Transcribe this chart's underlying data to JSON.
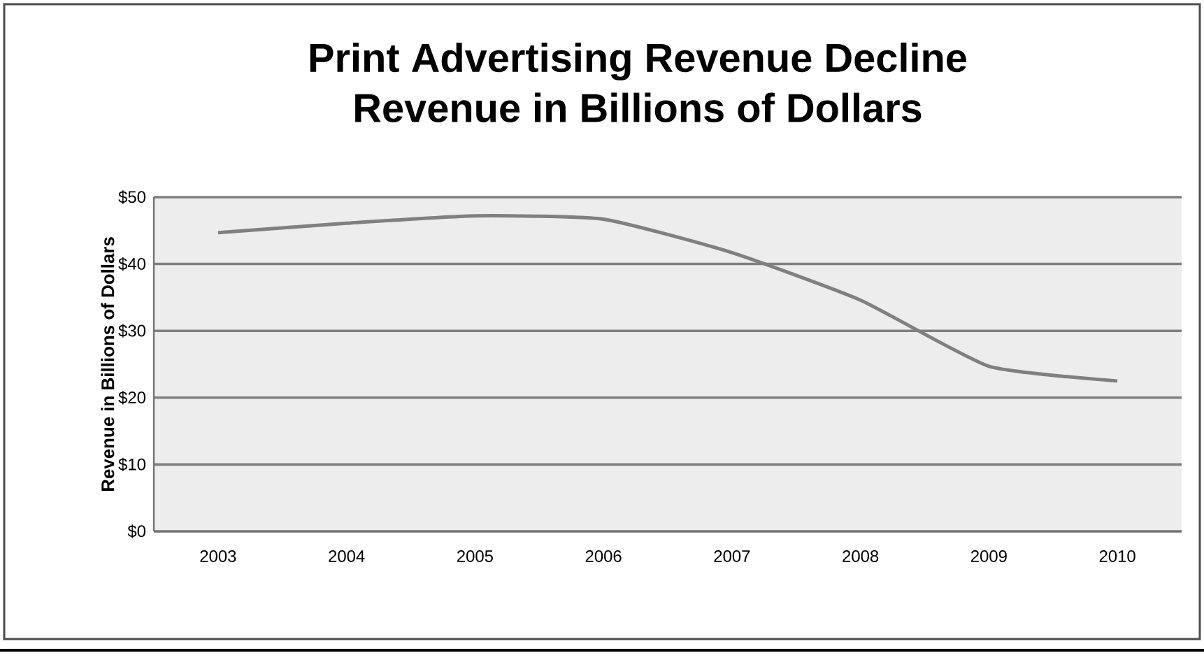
{
  "chart_data": {
    "type": "line",
    "title": "Print Advertising Revenue Decline",
    "subtitle": "Revenue in Billions of Dollars",
    "ylabel": "Revenue in Billions of Dollars",
    "categories": [
      "2003",
      "2004",
      "2005",
      "2006",
      "2007",
      "2008",
      "2009",
      "2010"
    ],
    "series": [
      {
        "color": "#808080",
        "values": [
          44.7,
          46.1,
          47.2,
          46.7,
          41.7,
          34.6,
          24.7,
          22.5
        ]
      }
    ],
    "ylim": [
      0,
      50
    ],
    "yticks": [
      {
        "value": 0,
        "label": "$0"
      },
      {
        "value": 10,
        "label": "$10"
      },
      {
        "value": 20,
        "label": "$20"
      },
      {
        "value": 30,
        "label": "$30"
      },
      {
        "value": 40,
        "label": "$40"
      },
      {
        "value": 50,
        "label": "$50"
      }
    ],
    "grid": "y",
    "marker": "none",
    "line_style": "solid"
  }
}
